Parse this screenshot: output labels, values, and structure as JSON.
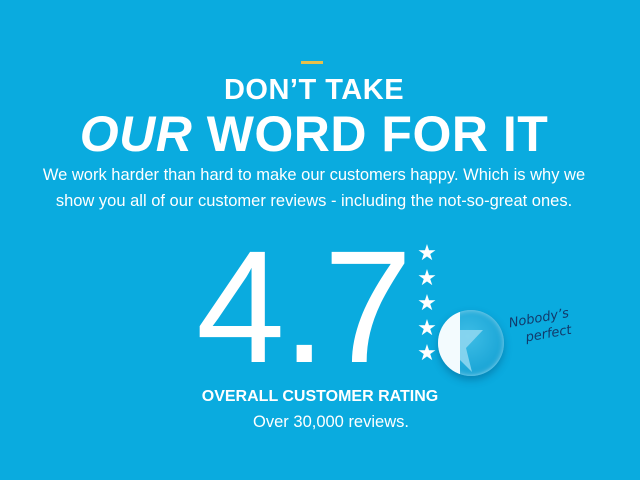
{
  "colors": {
    "background": "#0aabdf",
    "accent": "#e7c04a",
    "note": "#123a6b"
  },
  "heading": {
    "line1": "DON’T TAKE",
    "line2_emphasis": "OUR",
    "line2_rest": " WORD FOR IT"
  },
  "intro": {
    "line1": "We work harder than hard to make our customers happy. Which is why we",
    "line2": "show you all of our customer reviews - including the not-so-great ones."
  },
  "rating": {
    "value": "4.7",
    "max_stars": 5,
    "icon": "star-icon",
    "label": "OVERALL CUSTOMER RATING",
    "reviews": "Over 30,000 reviews."
  },
  "note": {
    "line1": "Nobody’s",
    "line2": "perfect"
  }
}
